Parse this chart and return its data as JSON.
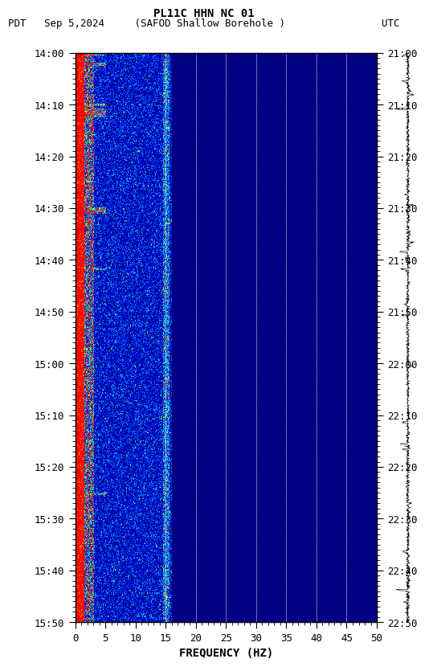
{
  "title_line1": "PL11C HHN NC 01",
  "title_line2": "PDT   Sep 5,2024     (SAFOD Shallow Borehole )                UTC",
  "xlabel": "FREQUENCY (HZ)",
  "freq_min": 0,
  "freq_max": 50,
  "time_start_pdt": "14:00",
  "time_end_pdt": "15:50",
  "time_start_utc": "21:00",
  "time_end_utc": "22:50",
  "pdt_ticks": [
    "14:00",
    "14:10",
    "14:20",
    "14:30",
    "14:40",
    "14:50",
    "15:00",
    "15:10",
    "15:20",
    "15:30",
    "15:40",
    "15:50"
  ],
  "utc_ticks": [
    "21:00",
    "21:10",
    "21:20",
    "21:30",
    "21:40",
    "21:50",
    "22:00",
    "22:10",
    "22:20",
    "22:30",
    "22:40",
    "22:50"
  ],
  "freq_ticks": [
    0,
    5,
    10,
    15,
    20,
    25,
    30,
    35,
    40,
    45,
    50
  ],
  "vertical_lines_freq": [
    15,
    20,
    25,
    30,
    35,
    40,
    45
  ],
  "bg_color": "white",
  "spectrogram_bg": "#000088"
}
